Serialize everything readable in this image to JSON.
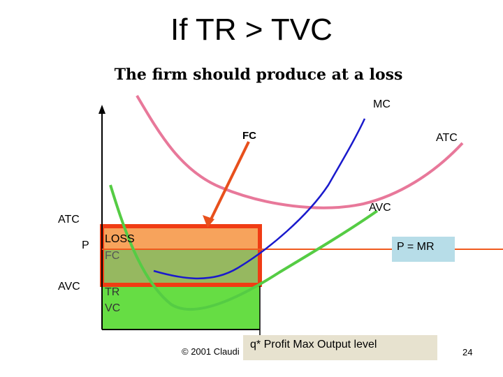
{
  "title": "If TR > TVC",
  "subtitle": "The firm should produce at a loss",
  "curves": {
    "mc": {
      "label": "MC",
      "color": "#1a1acc"
    },
    "atc": {
      "label": "ATC",
      "color": "#e8789a"
    },
    "avc": {
      "label": "AVC",
      "color": "#55cc44"
    },
    "price": {
      "label": "P = MR",
      "color": "#f05a1e"
    }
  },
  "axis_labels": {
    "atc": "ATC",
    "p": "P",
    "avc": "AVC"
  },
  "fc_pointer_label": "FC",
  "areas": {
    "loss": "LOSS",
    "fc": "FC",
    "tr": "TR",
    "vc": "VC"
  },
  "quantity_label": "q* Profit Max Output level",
  "copyright": "© 2001 Claudi",
  "page_number": "24",
  "colors": {
    "loss_fill": "#f7a35c",
    "fc_fill": "#96b860",
    "tr_fill": "#66dd44",
    "loss_border": "#f03c14",
    "fc_arrow": "#e8501c",
    "pmr_box": "#b7dde8",
    "q_box": "#e7e2cf"
  }
}
